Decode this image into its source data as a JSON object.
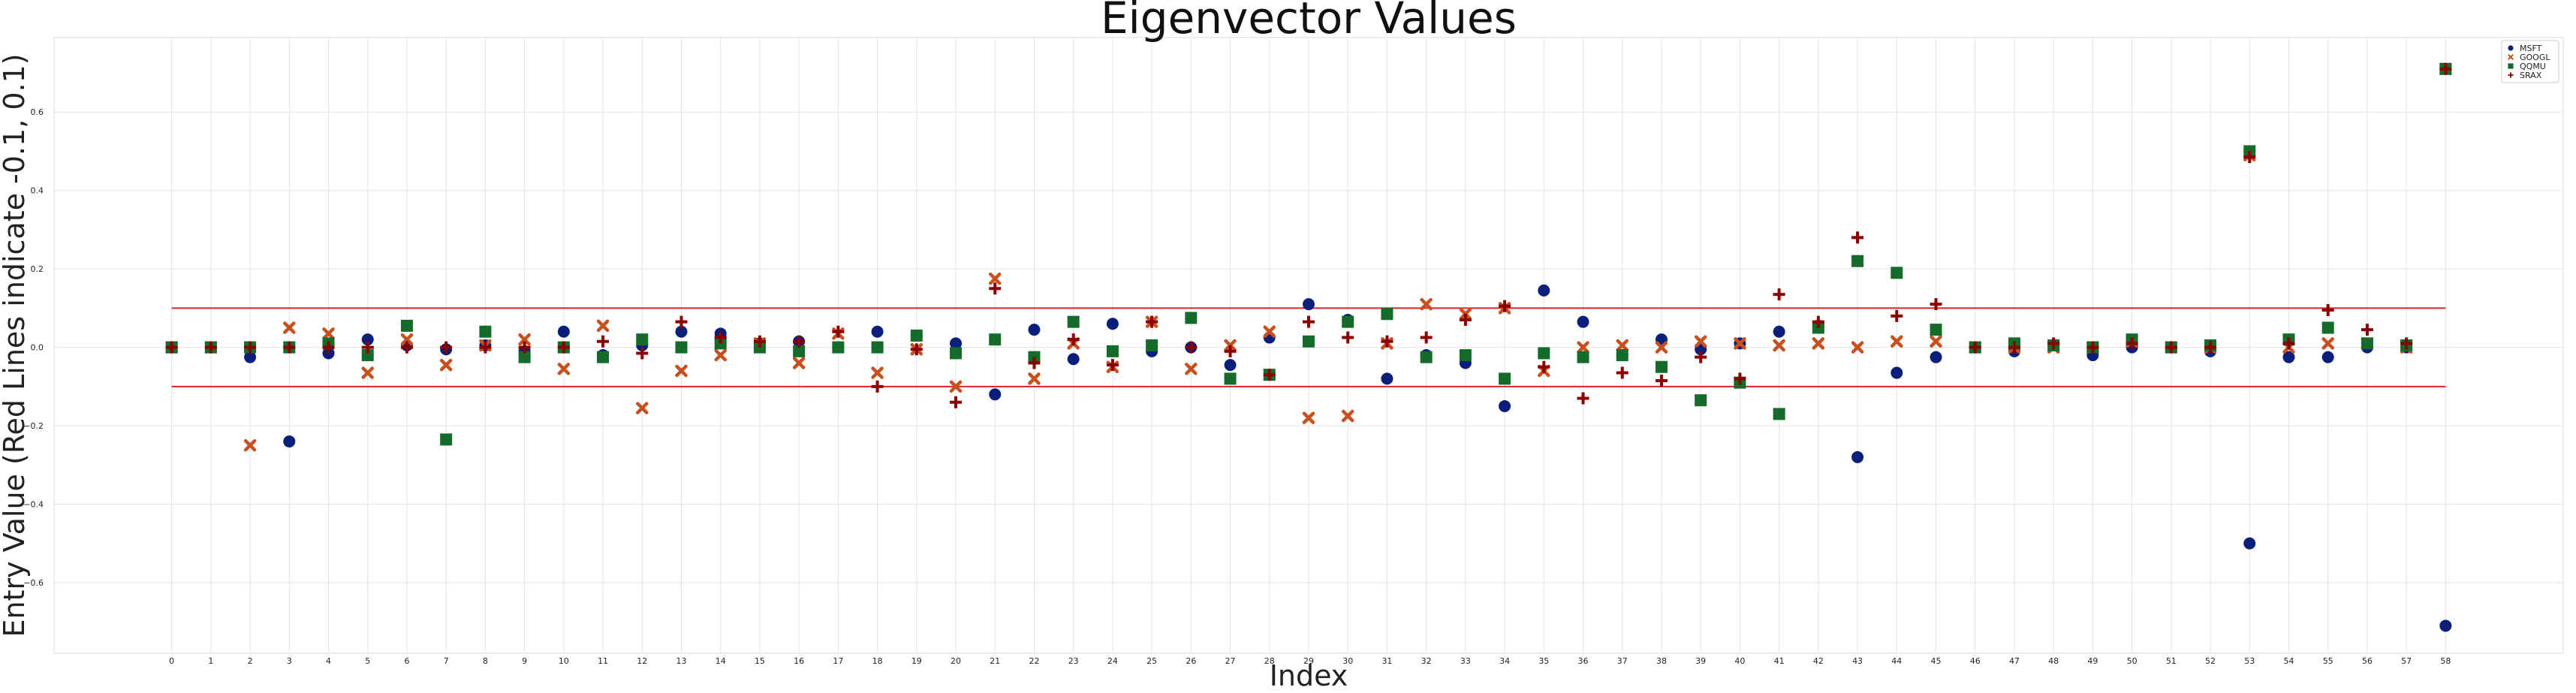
{
  "chart_data": {
    "type": "scatter",
    "title": "Eigenvector Values",
    "xlabel": "Index",
    "ylabel": "Entry Value (Red Lines indicate -0.1, 0.1)",
    "xlim": [
      -3,
      61
    ],
    "ylim": [
      -0.78,
      0.79
    ],
    "x_ticks": [
      0,
      1,
      2,
      3,
      4,
      5,
      6,
      7,
      8,
      9,
      10,
      11,
      12,
      13,
      14,
      15,
      16,
      17,
      18,
      19,
      20,
      21,
      22,
      23,
      24,
      25,
      26,
      27,
      28,
      29,
      30,
      31,
      32,
      33,
      34,
      35,
      36,
      37,
      38,
      39,
      40,
      41,
      42,
      43,
      44,
      45,
      46,
      47,
      48,
      49,
      50,
      51,
      52,
      53,
      54,
      55,
      56,
      57,
      58
    ],
    "y_ticks": [
      -0.6,
      -0.4,
      -0.2,
      0.0,
      0.2,
      0.4,
      0.6
    ],
    "y_tick_labels": [
      "−0.6",
      "−0.4",
      "−0.2",
      "0.0",
      "0.2",
      "0.4",
      "0.6"
    ],
    "grid": true,
    "legend_position": "top-right",
    "reference_lines": [
      {
        "y": 0.1,
        "x_range": [
          0,
          58
        ],
        "color": "#d62728"
      },
      {
        "y": -0.1,
        "x_range": [
          0,
          58
        ],
        "color": "#d62728"
      }
    ],
    "series": [
      {
        "name": "MSFT",
        "marker": "circle",
        "color": "#0a1f7a",
        "values": [
          0.0,
          0.0,
          -0.025,
          -0.24,
          -0.015,
          0.02,
          0.005,
          -0.005,
          0.005,
          -0.01,
          0.04,
          -0.02,
          0.005,
          0.04,
          0.035,
          0.01,
          0.015,
          0.0,
          0.04,
          0.03,
          0.01,
          -0.12,
          0.045,
          -0.03,
          0.06,
          -0.01,
          0.0,
          -0.045,
          0.025,
          0.11,
          0.07,
          -0.08,
          -0.02,
          -0.04,
          -0.15,
          0.145,
          0.065,
          -0.02,
          0.02,
          -0.005,
          0.01,
          0.04,
          0.055,
          -0.28,
          -0.065,
          -0.025,
          0.0,
          -0.01,
          0.005,
          -0.02,
          0.0,
          0.0,
          -0.01,
          -0.5,
          -0.025,
          -0.025,
          0.0,
          0.0,
          -0.71
        ]
      },
      {
        "name": "GOOGL",
        "marker": "x",
        "color": "#c8501e",
        "values": [
          0.0,
          0.0,
          -0.25,
          0.05,
          0.035,
          -0.065,
          0.02,
          -0.045,
          0.005,
          0.02,
          -0.055,
          0.055,
          -0.155,
          -0.06,
          -0.02,
          0.01,
          -0.04,
          0.035,
          -0.065,
          -0.005,
          -0.1,
          0.175,
          -0.08,
          0.01,
          -0.05,
          0.065,
          -0.055,
          0.005,
          0.04,
          -0.18,
          -0.175,
          0.01,
          0.11,
          0.085,
          0.1,
          -0.06,
          0.0,
          0.005,
          0.0,
          0.015,
          0.01,
          0.005,
          0.01,
          0.0,
          0.015,
          0.015,
          0.0,
          0.0,
          0.0,
          0.0,
          0.015,
          0.0,
          0.0,
          0.49,
          0.0,
          0.01,
          0.01,
          0.0,
          0.71
        ]
      },
      {
        "name": "QQMU",
        "marker": "square",
        "color": "#156b2a",
        "values": [
          0.0,
          0.0,
          0.0,
          0.0,
          0.01,
          -0.02,
          0.055,
          -0.235,
          0.04,
          -0.025,
          0.0,
          -0.025,
          0.02,
          0.0,
          0.01,
          0.0,
          -0.01,
          0.0,
          0.0,
          0.03,
          -0.015,
          0.02,
          -0.025,
          0.065,
          -0.01,
          0.005,
          0.075,
          -0.08,
          -0.07,
          0.015,
          0.065,
          0.085,
          -0.025,
          -0.02,
          -0.08,
          -0.015,
          -0.025,
          -0.02,
          -0.05,
          -0.135,
          -0.09,
          -0.17,
          0.05,
          0.22,
          0.19,
          0.045,
          0.0,
          0.01,
          0.005,
          0.0,
          0.02,
          0.0,
          0.005,
          0.5,
          0.02,
          0.05,
          0.01,
          0.005,
          0.71
        ]
      },
      {
        "name": "SRAX",
        "marker": "plus",
        "color": "#8b0000",
        "values": [
          0.0,
          0.0,
          0.0,
          0.0,
          0.0,
          0.0,
          0.0,
          0.0,
          0.0,
          0.0,
          0.0,
          0.015,
          -0.015,
          0.065,
          0.025,
          0.015,
          0.015,
          0.04,
          -0.1,
          -0.005,
          -0.14,
          0.15,
          -0.04,
          0.02,
          -0.045,
          0.065,
          0.0,
          -0.01,
          -0.07,
          0.065,
          0.025,
          0.015,
          0.025,
          0.07,
          0.105,
          -0.05,
          -0.13,
          -0.065,
          -0.085,
          -0.025,
          -0.08,
          0.135,
          0.065,
          0.28,
          0.08,
          0.11,
          0.0,
          0.0,
          0.01,
          0.0,
          0.01,
          0.0,
          0.0,
          0.485,
          0.01,
          0.095,
          0.045,
          0.01,
          0.71
        ]
      }
    ]
  }
}
